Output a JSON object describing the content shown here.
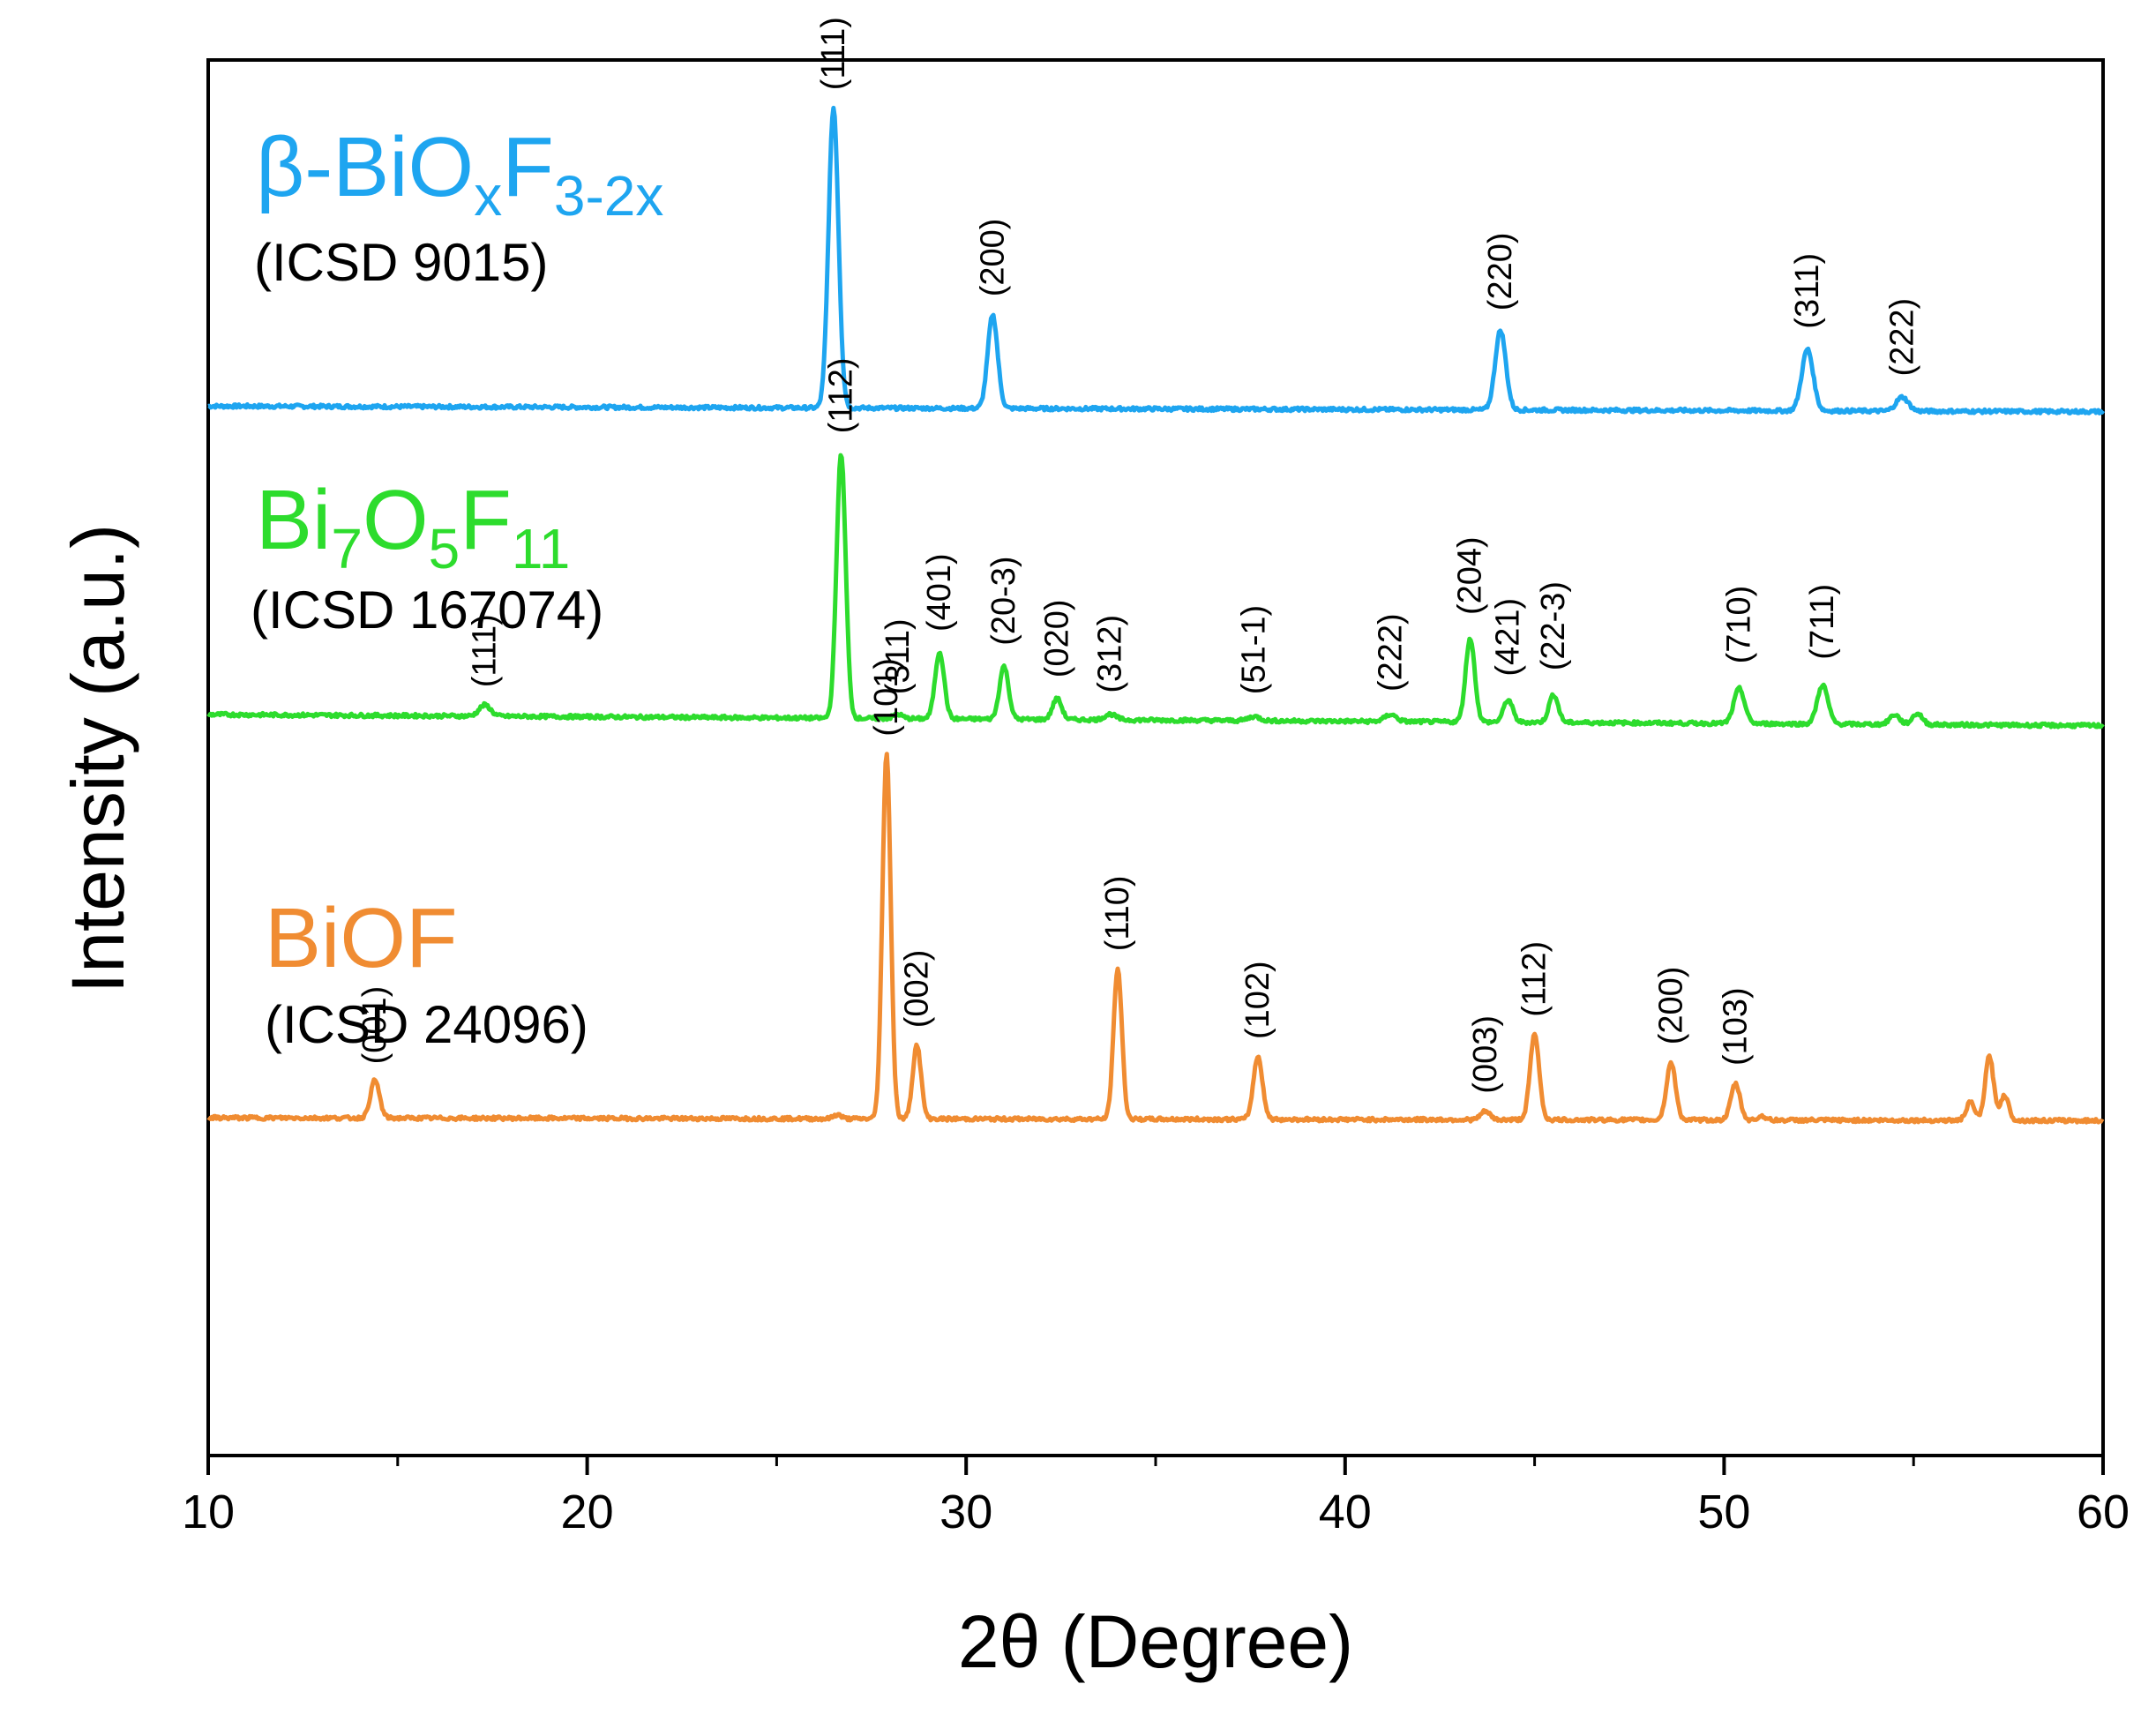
{
  "chart_data": {
    "type": "line",
    "xlabel": "2θ (Degree)",
    "ylabel": "Intensity (a.u.)",
    "xlim": [
      10,
      60
    ],
    "ylim": [
      0,
      1
    ],
    "xticks": [
      10,
      20,
      30,
      40,
      50,
      60
    ],
    "xticks_minor": [
      15,
      25,
      35,
      45,
      55
    ],
    "grid": false,
    "legend": "none",
    "series": [
      {
        "id": "beta",
        "name": "β-BiO",
        "name_sub1": "x",
        "name_mid": "F",
        "name_sub2": "3-2x",
        "ref": "(ICSD 9015)",
        "color": "#1ea5f0",
        "baseline": 0.752,
        "baseline_end": 0.748,
        "peaks": [
          {
            "x": 26.5,
            "h": 0.215,
            "w": 0.13,
            "label": "(111)"
          },
          {
            "x": 30.7,
            "h": 0.067,
            "w": 0.13,
            "label": "(200)"
          },
          {
            "x": 44.1,
            "h": 0.057,
            "w": 0.14,
            "label": "(220)"
          },
          {
            "x": 52.2,
            "h": 0.044,
            "w": 0.15,
            "label": "(311)"
          },
          {
            "x": 54.7,
            "h": 0.01,
            "w": 0.16,
            "label": "(222)"
          }
        ]
      },
      {
        "id": "bi7",
        "name": "Bi",
        "name_sub1": "7",
        "name_mid": "O",
        "name_sub2": "5",
        "name_mid2": "F",
        "name_sub3": "11",
        "ref": "(ICSD 167074)",
        "color": "#2ddc2d",
        "baseline": 0.531,
        "baseline_end": 0.523,
        "peaks": [
          {
            "x": 17.3,
            "h": 0.008,
            "w": 0.15,
            "label": "(111)"
          },
          {
            "x": 26.7,
            "h": 0.19,
            "w": 0.12,
            "label": "(112)"
          },
          {
            "x": 28.2,
            "h": 0.003,
            "w": 0.12,
            "label": "(311)"
          },
          {
            "x": 29.3,
            "h": 0.048,
            "w": 0.12,
            "label": "(401)"
          },
          {
            "x": 31.0,
            "h": 0.038,
            "w": 0.12,
            "label": "(20-3)"
          },
          {
            "x": 32.4,
            "h": 0.015,
            "w": 0.12,
            "label": "(020)"
          },
          {
            "x": 33.8,
            "h": 0.004,
            "w": 0.15,
            "label": "(312)"
          },
          {
            "x": 37.6,
            "h": 0.003,
            "w": 0.15,
            "label": "(51-1)"
          },
          {
            "x": 41.2,
            "h": 0.005,
            "w": 0.15,
            "label": "(222)"
          },
          {
            "x": 43.3,
            "h": 0.06,
            "w": 0.12,
            "label": "(204)"
          },
          {
            "x": 44.3,
            "h": 0.016,
            "w": 0.12,
            "label": "(421)"
          },
          {
            "x": 45.5,
            "h": 0.02,
            "w": 0.12,
            "label": "(22-3)"
          },
          {
            "x": 50.4,
            "h": 0.025,
            "w": 0.14,
            "label": "(710)"
          },
          {
            "x": 52.6,
            "h": 0.028,
            "w": 0.14,
            "label": "(711)"
          },
          {
            "x": 54.5,
            "h": 0.007,
            "w": 0.13,
            "label": ""
          },
          {
            "x": 55.1,
            "h": 0.008,
            "w": 0.13,
            "label": ""
          }
        ]
      },
      {
        "id": "biof",
        "name": "BiOF",
        "ref": "(ICSD 24096)",
        "color": "#f08c32",
        "baseline": 0.242,
        "baseline_end": 0.24,
        "peaks": [
          {
            "x": 14.4,
            "h": 0.027,
            "w": 0.12,
            "label": "(001)"
          },
          {
            "x": 26.6,
            "h": 0.003,
            "w": 0.1,
            "label": ""
          },
          {
            "x": 27.9,
            "h": 0.262,
            "w": 0.11,
            "label": "(101)"
          },
          {
            "x": 28.7,
            "h": 0.053,
            "w": 0.11,
            "label": "(002)"
          },
          {
            "x": 34.0,
            "h": 0.108,
            "w": 0.11,
            "label": "(110)"
          },
          {
            "x": 37.7,
            "h": 0.045,
            "w": 0.12,
            "label": "(102)"
          },
          {
            "x": 43.7,
            "h": 0.006,
            "w": 0.12,
            "label": "(003)"
          },
          {
            "x": 45.0,
            "h": 0.061,
            "w": 0.12,
            "label": "(112)"
          },
          {
            "x": 48.6,
            "h": 0.041,
            "w": 0.12,
            "label": "(200)"
          },
          {
            "x": 50.3,
            "h": 0.026,
            "w": 0.12,
            "label": "(103)"
          },
          {
            "x": 51.0,
            "h": 0.003,
            "w": 0.1,
            "label": ""
          },
          {
            "x": 56.5,
            "h": 0.013,
            "w": 0.11,
            "label": ""
          },
          {
            "x": 57.0,
            "h": 0.046,
            "w": 0.11,
            "label": ""
          },
          {
            "x": 57.4,
            "h": 0.018,
            "w": 0.11,
            "label": ""
          }
        ]
      }
    ]
  }
}
